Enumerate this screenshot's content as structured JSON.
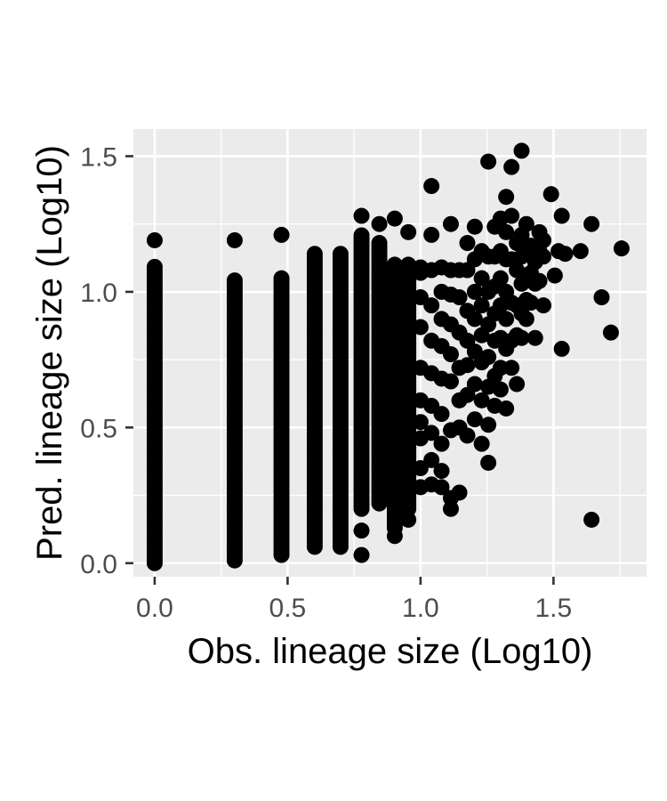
{
  "chart_data": {
    "type": "scatter",
    "title": "",
    "xlabel": "Obs. lineage size (Log10)",
    "ylabel": "Pred. lineage size (Log10)",
    "xlim": [
      -0.08,
      1.85
    ],
    "ylim": [
      -0.05,
      1.6
    ],
    "x_ticks": [
      0.0,
      0.5,
      1.0,
      1.5
    ],
    "x_tick_labels": [
      "0.0",
      "0.5",
      "1.0",
      "1.5"
    ],
    "y_ticks": [
      0.0,
      0.5,
      1.0,
      1.5
    ],
    "y_tick_labels": [
      "0.0",
      "0.5",
      "1.0",
      "1.5"
    ],
    "grid": true,
    "legend": "none",
    "colors": {
      "panel_background": "#ebebeb",
      "grid_line": "#ffffff",
      "point": "#000000",
      "tick_label": "#4d4d4d",
      "tick_mark": "#333333",
      "axis_title": "#000000"
    },
    "columns": [
      {
        "x": 0.0,
        "y_min": 0.0,
        "y_max": 1.1
      },
      {
        "x": 0.301,
        "y_min": 0.01,
        "y_max": 1.05
      },
      {
        "x": 0.477,
        "y_min": 0.03,
        "y_max": 1.06
      },
      {
        "x": 0.602,
        "y_min": 0.06,
        "y_max": 1.15
      },
      {
        "x": 0.699,
        "y_min": 0.06,
        "y_max": 1.15
      },
      {
        "x": 0.778,
        "y_min": 0.2,
        "y_max": 1.21
      },
      {
        "x": 0.845,
        "y_min": 0.22,
        "y_max": 1.19
      },
      {
        "x": 0.903,
        "y_min": 0.14,
        "y_max": 1.1
      },
      {
        "x": 0.954,
        "y_min": 0.2,
        "y_max": 1.1
      }
    ],
    "points": [
      [
        0.0,
        1.19
      ],
      [
        0.301,
        1.19
      ],
      [
        0.477,
        1.21
      ],
      [
        0.778,
        0.12
      ],
      [
        0.778,
        0.03
      ],
      [
        0.778,
        1.28
      ],
      [
        0.845,
        1.25
      ],
      [
        0.903,
        1.27
      ],
      [
        0.903,
        0.1
      ],
      [
        0.903,
        0.13
      ],
      [
        0.954,
        0.16
      ],
      [
        0.954,
        1.22
      ],
      [
        1.0,
        1.09
      ],
      [
        1.0,
        1.07
      ],
      [
        1.0,
        0.98
      ],
      [
        1.0,
        0.87
      ],
      [
        1.0,
        0.72
      ],
      [
        1.0,
        0.6
      ],
      [
        1.0,
        0.52
      ],
      [
        1.0,
        0.46
      ],
      [
        1.0,
        0.35
      ],
      [
        1.0,
        0.28
      ],
      [
        1.041,
        1.39
      ],
      [
        1.041,
        1.21
      ],
      [
        1.041,
        1.08
      ],
      [
        1.041,
        0.95
      ],
      [
        1.041,
        0.82
      ],
      [
        1.041,
        0.7
      ],
      [
        1.041,
        0.58
      ],
      [
        1.041,
        0.48
      ],
      [
        1.041,
        0.38
      ],
      [
        1.041,
        0.29
      ],
      [
        1.079,
        1.09
      ],
      [
        1.079,
        1.0
      ],
      [
        1.079,
        0.9
      ],
      [
        1.079,
        0.8
      ],
      [
        1.079,
        0.68
      ],
      [
        1.079,
        0.55
      ],
      [
        1.079,
        0.44
      ],
      [
        1.079,
        0.34
      ],
      [
        1.079,
        0.28
      ],
      [
        1.114,
        1.25
      ],
      [
        1.114,
        1.08
      ],
      [
        1.114,
        0.99
      ],
      [
        1.114,
        0.88
      ],
      [
        1.114,
        0.77
      ],
      [
        1.114,
        0.67
      ],
      [
        1.114,
        0.49
      ],
      [
        1.114,
        0.24
      ],
      [
        1.114,
        0.2
      ],
      [
        1.146,
        1.08
      ],
      [
        1.146,
        0.98
      ],
      [
        1.146,
        0.85
      ],
      [
        1.146,
        0.72
      ],
      [
        1.146,
        0.6
      ],
      [
        1.146,
        0.5
      ],
      [
        1.146,
        0.26
      ],
      [
        1.176,
        1.18
      ],
      [
        1.176,
        1.08
      ],
      [
        1.176,
        0.93
      ],
      [
        1.176,
        0.82
      ],
      [
        1.176,
        0.73
      ],
      [
        1.176,
        0.62
      ],
      [
        1.176,
        0.47
      ],
      [
        1.204,
        1.24
      ],
      [
        1.204,
        1.12
      ],
      [
        1.204,
        1.0
      ],
      [
        1.204,
        0.9
      ],
      [
        1.204,
        0.78
      ],
      [
        1.204,
        0.66
      ],
      [
        1.204,
        0.53
      ],
      [
        1.23,
        1.15
      ],
      [
        1.23,
        1.05
      ],
      [
        1.23,
        0.95
      ],
      [
        1.23,
        0.84
      ],
      [
        1.23,
        0.74
      ],
      [
        1.23,
        0.6
      ],
      [
        1.23,
        0.44
      ],
      [
        1.255,
        1.48
      ],
      [
        1.255,
        1.13
      ],
      [
        1.255,
        1.0
      ],
      [
        1.255,
        0.88
      ],
      [
        1.255,
        0.76
      ],
      [
        1.255,
        0.65
      ],
      [
        1.255,
        0.51
      ],
      [
        1.255,
        0.37
      ],
      [
        1.279,
        1.24
      ],
      [
        1.279,
        1.13
      ],
      [
        1.279,
        1.02
      ],
      [
        1.279,
        0.92
      ],
      [
        1.279,
        0.82
      ],
      [
        1.279,
        0.69
      ],
      [
        1.279,
        0.58
      ],
      [
        1.301,
        1.27
      ],
      [
        1.301,
        1.15
      ],
      [
        1.301,
        1.05
      ],
      [
        1.301,
        0.95
      ],
      [
        1.301,
        0.83
      ],
      [
        1.301,
        0.72
      ],
      [
        1.301,
        0.64
      ],
      [
        1.322,
        1.35
      ],
      [
        1.322,
        1.22
      ],
      [
        1.322,
        1.12
      ],
      [
        1.322,
        1.0
      ],
      [
        1.322,
        0.9
      ],
      [
        1.322,
        0.79
      ],
      [
        1.322,
        0.57
      ],
      [
        1.342,
        1.46
      ],
      [
        1.342,
        1.28
      ],
      [
        1.342,
        1.12
      ],
      [
        1.342,
        0.96
      ],
      [
        1.342,
        0.82
      ],
      [
        1.342,
        0.72
      ],
      [
        1.362,
        1.18
      ],
      [
        1.362,
        1.08
      ],
      [
        1.362,
        0.95
      ],
      [
        1.362,
        0.84
      ],
      [
        1.362,
        0.66
      ],
      [
        1.38,
        1.52
      ],
      [
        1.38,
        1.21
      ],
      [
        1.38,
        1.13
      ],
      [
        1.38,
        1.03
      ],
      [
        1.38,
        0.92
      ],
      [
        1.38,
        0.83
      ],
      [
        1.398,
        1.25
      ],
      [
        1.398,
        1.14
      ],
      [
        1.398,
        1.06
      ],
      [
        1.398,
        0.97
      ],
      [
        1.398,
        0.9
      ],
      [
        1.415,
        1.17
      ],
      [
        1.415,
        1.07
      ],
      [
        1.415,
        0.96
      ],
      [
        1.431,
        1.11
      ],
      [
        1.431,
        1.03
      ],
      [
        1.431,
        0.83
      ],
      [
        1.447,
        1.22
      ],
      [
        1.447,
        1.15
      ],
      [
        1.447,
        1.04
      ],
      [
        1.462,
        1.19
      ],
      [
        1.462,
        1.13
      ],
      [
        1.462,
        0.95
      ],
      [
        1.491,
        1.36
      ],
      [
        1.505,
        1.06
      ],
      [
        1.519,
        1.15
      ],
      [
        1.531,
        1.28
      ],
      [
        1.531,
        0.79
      ],
      [
        1.544,
        1.14
      ],
      [
        1.602,
        1.15
      ],
      [
        1.643,
        1.25
      ],
      [
        1.643,
        0.16
      ],
      [
        1.681,
        0.98
      ],
      [
        1.716,
        0.85
      ],
      [
        1.756,
        1.16
      ]
    ]
  }
}
